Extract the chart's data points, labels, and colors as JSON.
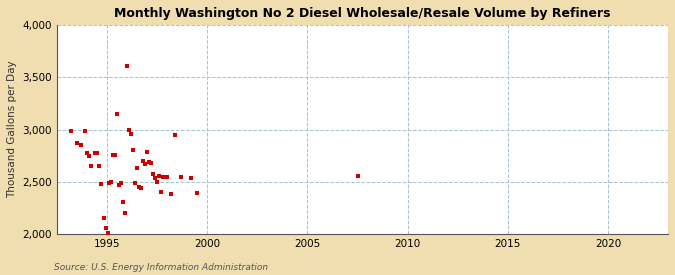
{
  "title": "Monthly Washington No 2 Diesel Wholesale/Resale Volume by Refiners",
  "ylabel": "Thousand Gallons per Day",
  "source": "Source: U.S. Energy Information Administration",
  "xlim": [
    1992.5,
    2023
  ],
  "ylim": [
    2000,
    4000
  ],
  "xticks": [
    1995,
    2000,
    2005,
    2010,
    2015,
    2020
  ],
  "yticks": [
    2000,
    2500,
    3000,
    3500,
    4000
  ],
  "fig_bg_color": "#f0deb0",
  "plot_bg_color": "#ffffff",
  "marker_color": "#cc0000",
  "scatter_x": [
    1993.2,
    1993.5,
    1993.7,
    1993.9,
    1994.0,
    1994.1,
    1994.2,
    1994.4,
    1994.5,
    1994.6,
    1994.7,
    1994.85,
    1994.95,
    1995.05,
    1995.1,
    1995.2,
    1995.3,
    1995.4,
    1995.5,
    1995.6,
    1995.7,
    1995.8,
    1995.9,
    1996.0,
    1996.1,
    1996.2,
    1996.3,
    1996.4,
    1996.5,
    1996.6,
    1996.7,
    1996.8,
    1996.9,
    1997.0,
    1997.1,
    1997.2,
    1997.3,
    1997.4,
    1997.5,
    1997.6,
    1997.7,
    1997.8,
    1997.9,
    1998.0,
    1998.2,
    1998.4,
    1998.7,
    1999.2,
    1999.5,
    2007.5
  ],
  "scatter_y": [
    2990,
    2870,
    2850,
    2990,
    2780,
    2750,
    2650,
    2780,
    2780,
    2650,
    2480,
    2150,
    2060,
    2010,
    2490,
    2500,
    2760,
    2760,
    3150,
    2470,
    2490,
    2310,
    2200,
    3610,
    3000,
    2960,
    2800,
    2490,
    2630,
    2450,
    2440,
    2700,
    2670,
    2790,
    2690,
    2680,
    2570,
    2540,
    2500,
    2560,
    2400,
    2550,
    2550,
    2550,
    2380,
    2950,
    2550,
    2540,
    2390,
    2560
  ]
}
